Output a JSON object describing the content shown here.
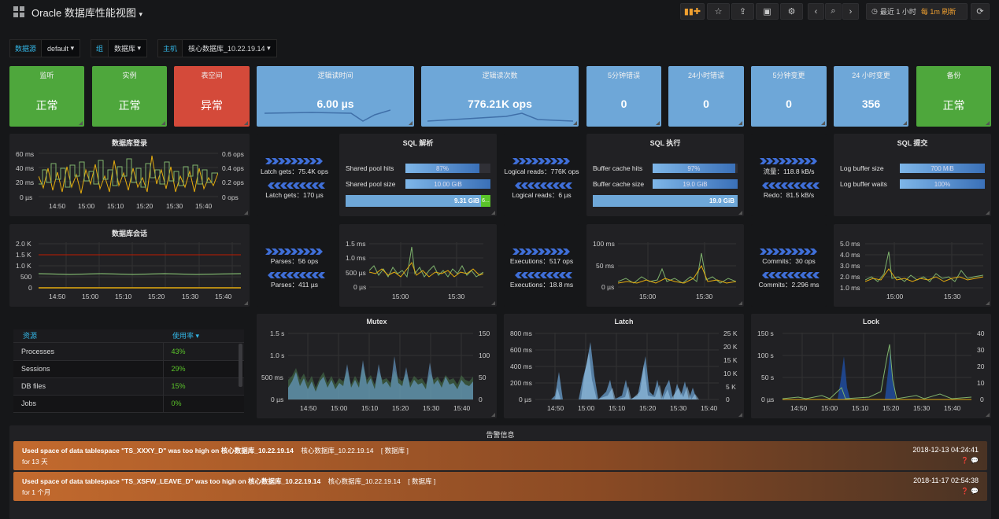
{
  "header": {
    "title": "Oracle 数据库性能视图",
    "time_range": "最近 1 小时",
    "refresh_every": "每 1m 刷新"
  },
  "variables": [
    {
      "label": "数据源",
      "value": "default"
    },
    {
      "label": "组",
      "value": "数据库"
    },
    {
      "label": "主机",
      "value": "核心数据库_10.22.19.14"
    }
  ],
  "stats": [
    {
      "title": "监听",
      "value": "正常",
      "color": "#4ea73c"
    },
    {
      "title": "实例",
      "value": "正常",
      "color": "#4ea73c"
    },
    {
      "title": "表空间",
      "value": "异常",
      "color": "#d44a3a"
    },
    {
      "title": "逻辑读时间",
      "value": "6.00 µs",
      "color": "#6ea7d8"
    },
    {
      "title": "逻辑读次数",
      "value": "776.21K ops",
      "color": "#6ea7d8"
    },
    {
      "title": "5分钟错误",
      "value": "0",
      "color": "#6ea7d8"
    },
    {
      "title": "24小时错误",
      "value": "0",
      "color": "#6ea7d8"
    },
    {
      "title": "5分钟变更",
      "value": "0",
      "color": "#6ea7d8"
    },
    {
      "title": "24 小时变更",
      "value": "356",
      "color": "#6ea7d8"
    },
    {
      "title": "备份",
      "value": "正常",
      "color": "#4ea73c"
    }
  ],
  "panels": {
    "login": {
      "title": "数据库登录",
      "y_left": [
        "60 ms",
        "40 ms",
        "20 ms",
        "0 µs"
      ],
      "y_right": [
        "0.6 ops",
        "0.4 ops",
        "0.2 ops",
        "0 ops"
      ],
      "x": [
        "14:50",
        "15:00",
        "15:10",
        "15:20",
        "15:30",
        "15:40"
      ]
    },
    "sessions": {
      "title": "数据库会话",
      "y_left": [
        "2.0 K",
        "1.5 K",
        "1.0 K",
        "500",
        "0"
      ],
      "x": [
        "14:50",
        "15:00",
        "15:10",
        "15:20",
        "15:30",
        "15:40"
      ]
    },
    "sql_parse": {
      "title": "SQL 解析",
      "gauges": [
        {
          "label": "Shared pool hits",
          "value": "87%",
          "fill": 0.87
        },
        {
          "label": "Shared pool size",
          "value": "10.00 GiB",
          "fill": 1.0
        }
      ],
      "bar": "9.31 GiB",
      "bar_extra": "6..."
    },
    "sql_exec": {
      "title": "SQL 执行",
      "gauges": [
        {
          "label": "Buffer cache hits",
          "value": "97%",
          "fill": 0.97
        },
        {
          "label": "Buffer cache size",
          "value": "19.0 GiB",
          "fill": 1.0
        }
      ],
      "bar": "19.0 GiB"
    },
    "sql_commit": {
      "title": "SQL 提交",
      "gauges": [
        {
          "label": "Log buffer size",
          "value": "700 MiB",
          "fill": 1.0
        },
        {
          "label": "Log buffer waits",
          "value": "100%",
          "fill": 1.0
        }
      ]
    },
    "parse_chart": {
      "y": [
        "1.5 ms",
        "1.0 ms",
        "500 µs",
        "0 µs"
      ],
      "x": [
        "15:00",
        "15:30"
      ]
    },
    "exec_chart": {
      "y": [
        "100 ms",
        "50 ms",
        "0 µs"
      ],
      "x": [
        "15:00",
        "15:30"
      ]
    },
    "commit_chart": {
      "y": [
        "5.0 ms",
        "4.0 ms",
        "3.0 ms",
        "2.0 ms",
        "1.0 ms"
      ],
      "x": [
        "15:00",
        "15:30"
      ]
    },
    "mutex": {
      "title": "Mutex",
      "y_left": [
        "1.5 s",
        "1.0 s",
        "500 ms",
        "0 µs"
      ],
      "y_right": [
        "150",
        "100",
        "50",
        "0"
      ],
      "x": [
        "14:50",
        "15:00",
        "15:10",
        "15:20",
        "15:30",
        "15:40"
      ]
    },
    "latch": {
      "title": "Latch",
      "y_left": [
        "800 ms",
        "600 ms",
        "400 ms",
        "200 ms",
        "0 µs"
      ],
      "y_right": [
        "25 K",
        "20 K",
        "15 K",
        "10 K",
        "5 K",
        "0"
      ],
      "x": [
        "14:50",
        "15:00",
        "15:10",
        "15:20",
        "15:30",
        "15:40"
      ]
    },
    "lock": {
      "title": "Lock",
      "y_left": [
        "150 s",
        "100 s",
        "50 s",
        "0 µs"
      ],
      "y_right": [
        "40",
        "30",
        "20",
        "10",
        "0"
      ],
      "x": [
        "14:50",
        "15:00",
        "15:10",
        "15:20",
        "15:30",
        "15:40"
      ]
    }
  },
  "stats_mid": {
    "latch_gets_ops": "Latch gets：75.4K ops",
    "latch_gets_us": "Latch gets：170 µs",
    "logical_reads_ops": "Logical reads：776K ops",
    "logical_reads_us": "Logical reads：6 µs",
    "flow": "流量：118.8 kB/s",
    "redo": "Redo：81.5 kB/s",
    "parses_ops": "Parses：56 ops",
    "parses_us": "Parses：411 µs",
    "exec_ops": "Executions：517 ops",
    "exec_ms": "Executions：18.8 ms",
    "commits_ops": "Commits：30 ops",
    "commits_ms": "Commits：2.296 ms"
  },
  "resources": {
    "col1": "资源",
    "col2": "使用率",
    "rows": [
      {
        "name": "Processes",
        "usage": "43%"
      },
      {
        "name": "Sessions",
        "usage": "29%"
      },
      {
        "name": "DB files",
        "usage": "15%"
      },
      {
        "name": "Jobs",
        "usage": "0%"
      }
    ]
  },
  "alerts": {
    "title": "告警信息",
    "items": [
      {
        "msg": "Used space of data tablespace \"TS_XXXY_D\" was too high on 核心数据库_10.22.19.14",
        "host": "核心数据库_10.22.19.14",
        "group": "[ 数据库 ]",
        "duration": "for 13 天",
        "time": "2018-12-13 04:24:41"
      },
      {
        "msg": "Used space of data tablespace \"TS_XSFW_LEAVE_D\" was too high on 核心数据库_10.22.19.14",
        "host": "核心数据库_10.22.19.14",
        "group": "[ 数据库 ]",
        "duration": "for 1 个月",
        "time": "2018-11-17 02:54:38"
      }
    ]
  }
}
